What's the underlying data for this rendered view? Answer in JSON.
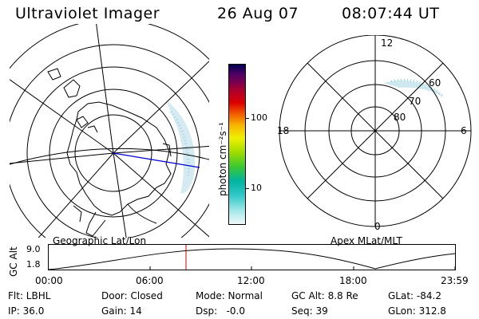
{
  "header": {
    "title": "Ultraviolet Imager",
    "date": "26 Aug 07",
    "time": "08:07:44 UT"
  },
  "geo_panel": {
    "caption": "Geographic Lat/Lon",
    "colors": {
      "coast": "#000000",
      "auroral_emission": "#b8e0ea",
      "track": "#0000cc"
    }
  },
  "colorbar": {
    "unit_label": "photon cm⁻²s⁻¹",
    "ticks": [
      "100",
      "10"
    ],
    "scale": "log",
    "colors": [
      "#f0f8fa",
      "#7be0dc",
      "#32c8c8",
      "#00b4a0",
      "#3cc832",
      "#a0dc00",
      "#f0f000",
      "#f8b400",
      "#f05000",
      "#dc0000",
      "#b40028",
      "#780050",
      "#500064",
      "#28005a",
      "#000050"
    ]
  },
  "mag_panel": {
    "caption": "Apex MLat/MLT",
    "mlt_labels": {
      "top": "12",
      "bottom": "0",
      "left": "18",
      "right": "6"
    },
    "lat_labels": [
      "60",
      "70",
      "80"
    ]
  },
  "altitude_plot": {
    "ylabel": "GC Alt",
    "yticks": [
      "9.0",
      "1.8"
    ],
    "xticks": [
      "00:00",
      "06:00",
      "12:00",
      "18:00",
      "23:59"
    ],
    "marker_time": "08:07",
    "marker_color": "#cc0000"
  },
  "status": {
    "row1": [
      {
        "label": "Flt: LBHL"
      },
      {
        "label": "Door: Closed"
      },
      {
        "label": "Mode: Normal"
      },
      {
        "label": "GC Alt: 8.8 Re"
      },
      {
        "label": "GLat: -84.2"
      }
    ],
    "row2": [
      {
        "label": "IP: 36.0"
      },
      {
        "label": "Gain: 14"
      },
      {
        "label": "Dsp:   -0.0"
      },
      {
        "label": "Seq: 39"
      },
      {
        "label": "GLon: 312.8"
      }
    ]
  }
}
